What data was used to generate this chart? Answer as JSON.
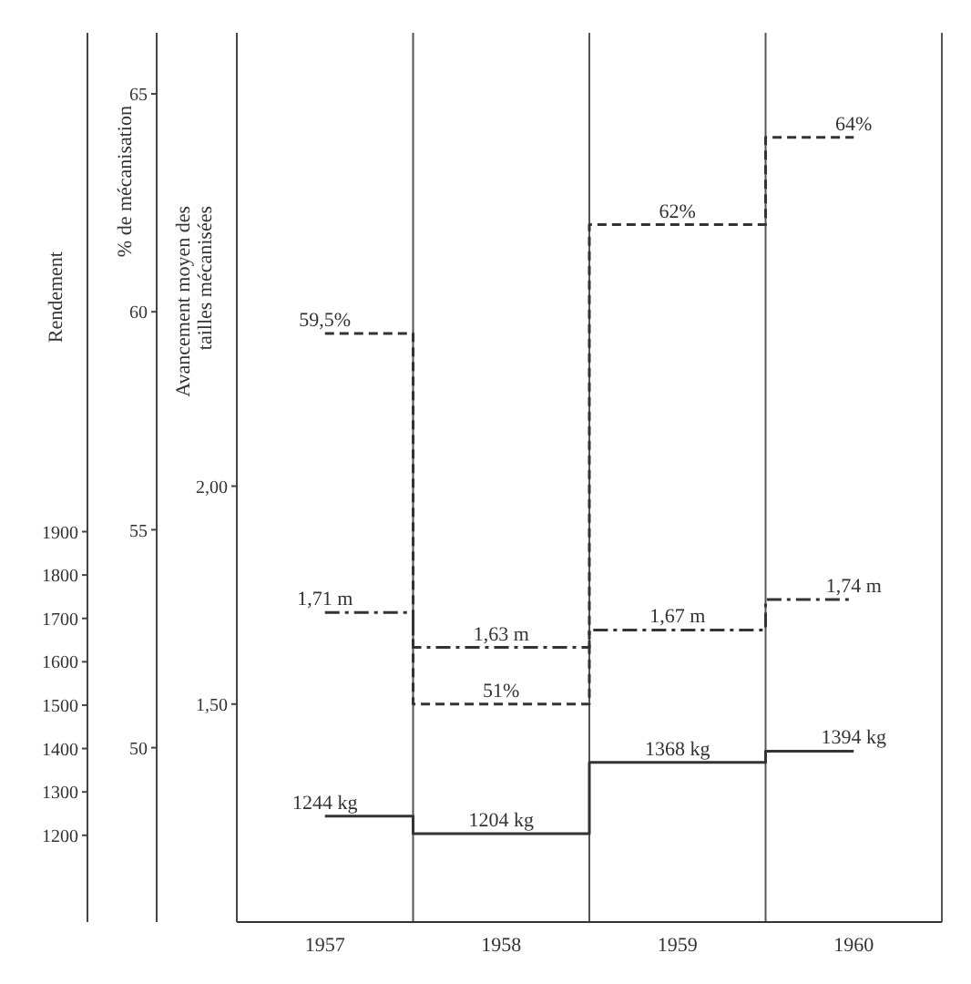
{
  "chart_data": {
    "type": "step",
    "categories": [
      "1957",
      "1958",
      "1959",
      "1960"
    ],
    "series": [
      {
        "color": "#333333",
        "line_style": "dashed",
        "axis": "y2",
        "values": [
          59.5,
          51,
          62,
          64
        ],
        "value_labels": [
          "59,5%",
          "51%",
          "62%",
          "64%"
        ]
      },
      {
        "color": "#333333",
        "line_style": "dashdot",
        "axis": "y",
        "values": [
          1.71,
          1.63,
          1.67,
          1.74
        ],
        "value_labels": [
          "1,71 m",
          "1,63 m",
          "1,67 m",
          "1,74 m"
        ]
      },
      {
        "color": "#333333",
        "line_style": "solid",
        "axis": "y3",
        "values": [
          1244,
          1204,
          1368,
          1394
        ],
        "value_labels": [
          "1244 kg",
          "1204 kg",
          "1368 kg",
          "1394 kg"
        ]
      }
    ],
    "ylabel": "Avancement moyen des tailles mécanisées",
    "y2label": "% de mécanisation",
    "y3label": "Rendement",
    "ylim": [
      1.0,
      3.04
    ],
    "yticks": [
      {
        "value": 1.5,
        "label": "1,50"
      },
      {
        "value": 2.0,
        "label": "2,00"
      }
    ],
    "y2lim": [
      46,
      66.4
    ],
    "y2ticks": [
      50,
      55,
      60,
      65
    ],
    "y3lim": [
      1000,
      3050
    ],
    "y3ticks": [
      1200,
      1300,
      1400,
      1500,
      1600,
      1700,
      1800,
      1900
    ],
    "grid": "x",
    "legend": false,
    "marker": "none"
  }
}
